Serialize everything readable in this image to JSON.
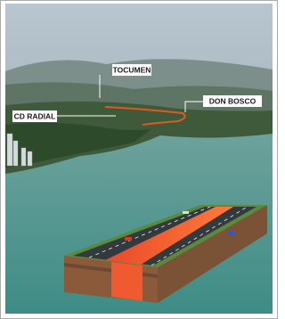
{
  "labels": {
    "tocumen": "TOCUMEN",
    "don_bosco": "DON BOSCO",
    "cd_radial": "CD RADIAL"
  }
}
